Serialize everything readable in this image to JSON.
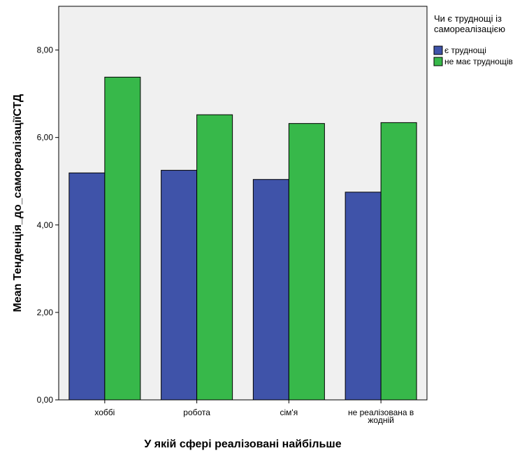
{
  "chart_data": {
    "type": "bar",
    "title": "",
    "xlabel": "У якій сфері реалізовані найбільше",
    "ylabel": "Mean Тенденція_до_самореалізаціїСТД",
    "categories": [
      [
        "хоббі"
      ],
      [
        "робота"
      ],
      [
        "сім'я"
      ],
      [
        "не реалізована в",
        "жодній"
      ]
    ],
    "series": [
      {
        "name": "є труднощі",
        "color": "#3f53a9",
        "values": [
          5.19,
          5.25,
          5.04,
          4.75
        ]
      },
      {
        "name": "не має труднощів",
        "color": "#37b84a",
        "values": [
          7.38,
          6.52,
          6.32,
          6.34
        ]
      }
    ],
    "ylim": [
      0,
      9
    ],
    "yticks": [
      0,
      2,
      4,
      6,
      8
    ],
    "ytick_labels": [
      "0,00",
      "2,00",
      "4,00",
      "6,00",
      "8,00"
    ],
    "grid": false,
    "plot_background": "#f0f0f0",
    "bar_outline": "#000000",
    "legend": {
      "title_lines": [
        "Чи є труднощі із",
        "самореалізацією"
      ],
      "placement": "right"
    }
  }
}
